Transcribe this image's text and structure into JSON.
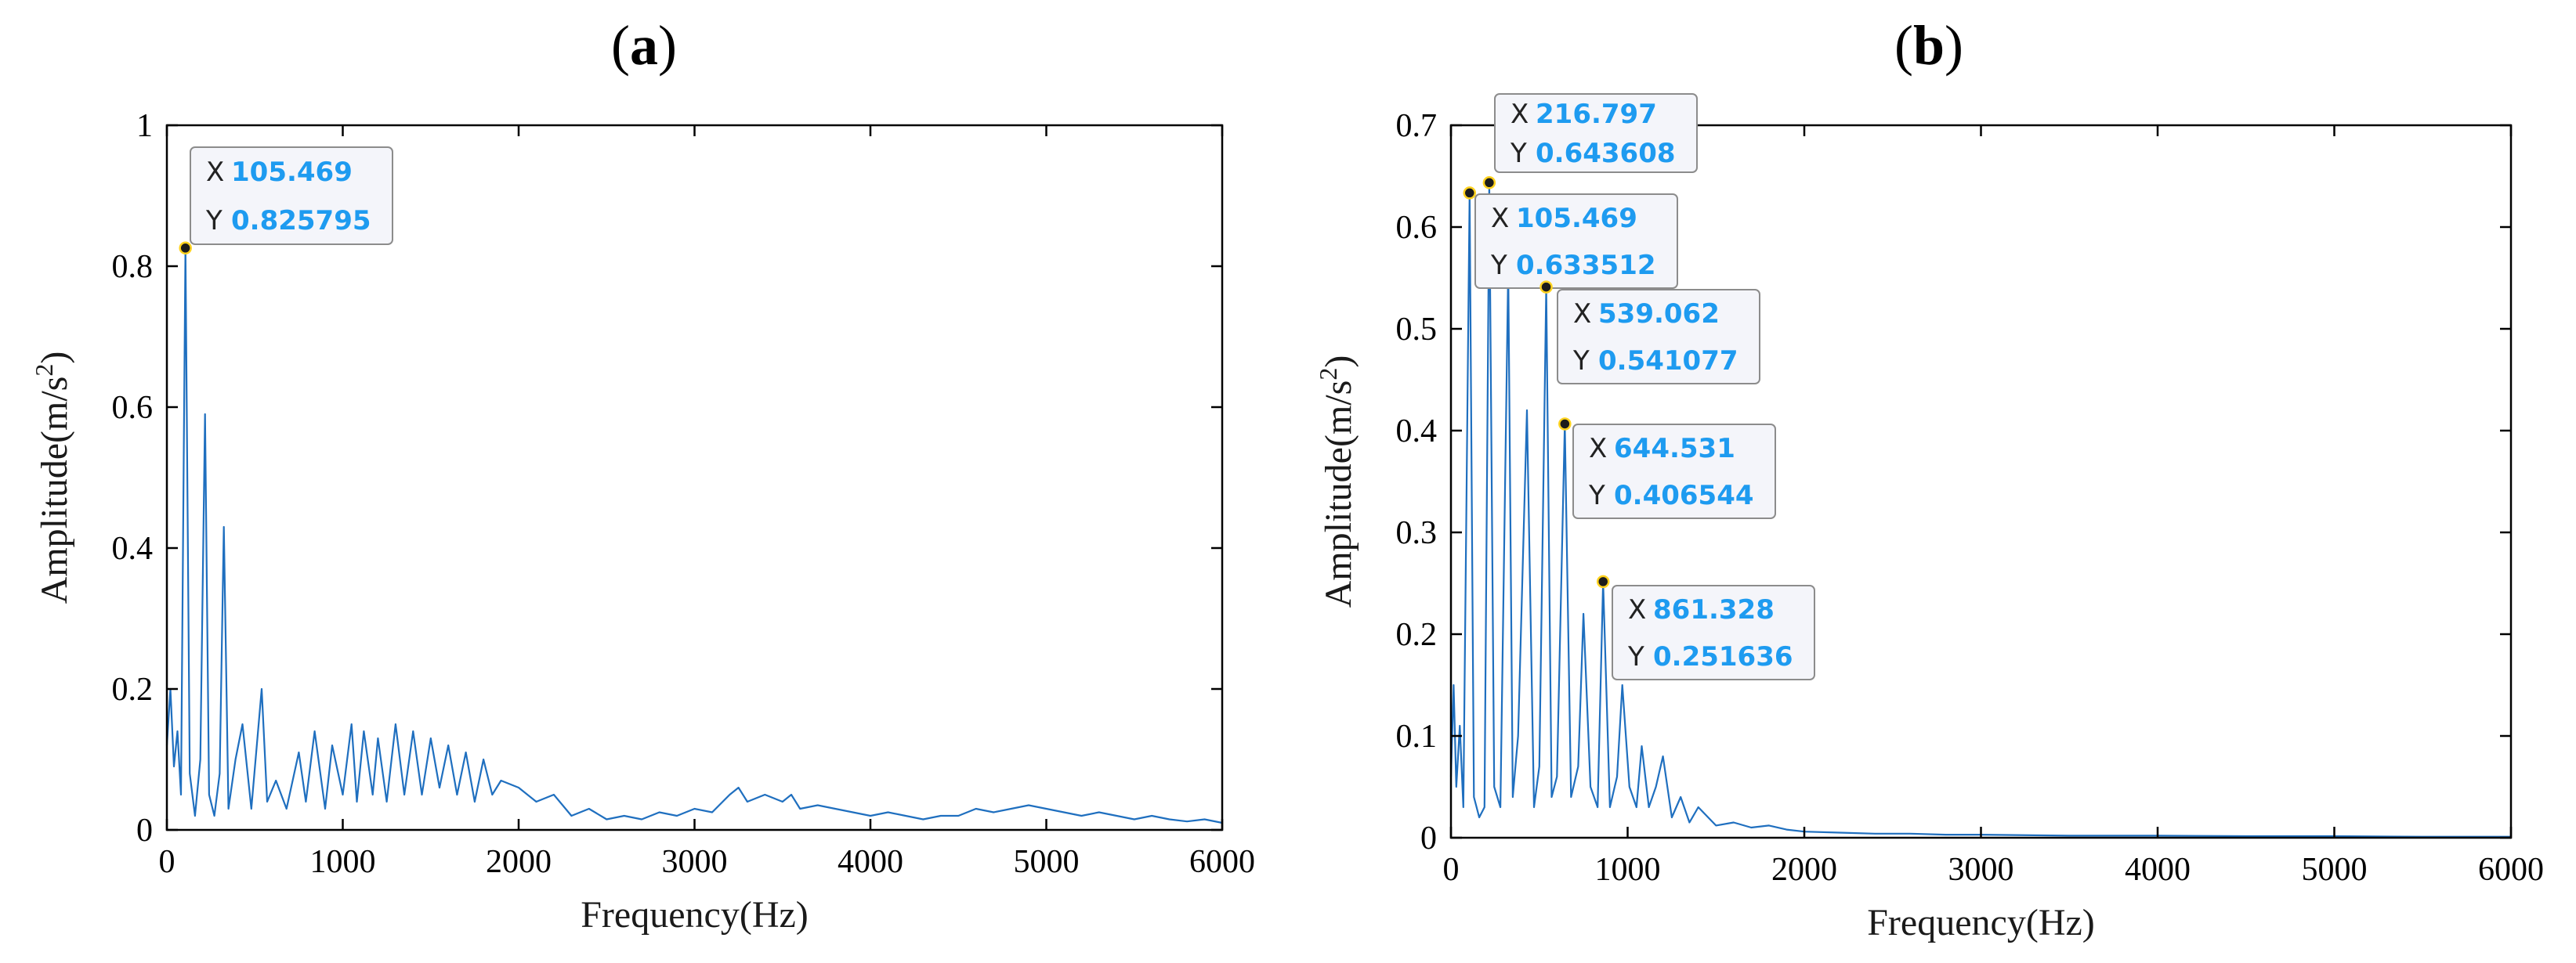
{
  "chart_data": [
    {
      "type": "line",
      "panel_label": "a",
      "title": "",
      "xlabel": "Frequency(Hz)",
      "ylabel_base": "Amplitude(m/s",
      "ylabel_sup": "2",
      "ylabel_close": ")",
      "xlim": [
        0,
        6000
      ],
      "ylim": [
        0,
        1
      ],
      "xticks": [
        0,
        1000,
        2000,
        3000,
        4000,
        5000,
        6000
      ],
      "yticks": [
        0,
        0.2,
        0.4,
        0.6,
        0.8,
        1
      ],
      "ytick_labels": [
        "0",
        "0.2",
        "0.4",
        "0.6",
        "0.8",
        "1"
      ],
      "grid": false,
      "series_color": "#1f6fbf",
      "series": [
        {
          "x": [
            0,
            20,
            40,
            60,
            80,
            105.469,
            130,
            160,
            190,
            216.797,
            240,
            270,
            300,
            324,
            350,
            390,
            430,
            480,
            539,
            570,
            620,
            680,
            750,
            790,
            840,
            900,
            940,
            1000,
            1050,
            1080,
            1120,
            1170,
            1200,
            1250,
            1300,
            1350,
            1400,
            1450,
            1500,
            1550,
            1600,
            1650,
            1700,
            1750,
            1800,
            1850,
            1900,
            2000,
            2100,
            2200,
            2300,
            2400,
            2500,
            2600,
            2700,
            2800,
            2900,
            3000,
            3100,
            3200,
            3250,
            3300,
            3400,
            3500,
            3550,
            3600,
            3700,
            3800,
            3900,
            4000,
            4100,
            4200,
            4300,
            4400,
            4500,
            4600,
            4700,
            4800,
            4900,
            5000,
            5100,
            5200,
            5300,
            5400,
            5500,
            5600,
            5700,
            5800,
            5900,
            6000
          ],
          "y": [
            0.12,
            0.2,
            0.09,
            0.14,
            0.05,
            0.825795,
            0.08,
            0.02,
            0.1,
            0.59,
            0.05,
            0.02,
            0.08,
            0.43,
            0.03,
            0.1,
            0.15,
            0.03,
            0.2,
            0.04,
            0.07,
            0.03,
            0.11,
            0.04,
            0.14,
            0.03,
            0.12,
            0.05,
            0.15,
            0.04,
            0.14,
            0.05,
            0.13,
            0.04,
            0.15,
            0.05,
            0.14,
            0.05,
            0.13,
            0.06,
            0.12,
            0.05,
            0.11,
            0.04,
            0.1,
            0.05,
            0.07,
            0.06,
            0.04,
            0.05,
            0.02,
            0.03,
            0.015,
            0.02,
            0.015,
            0.025,
            0.02,
            0.03,
            0.025,
            0.05,
            0.06,
            0.04,
            0.05,
            0.04,
            0.05,
            0.03,
            0.035,
            0.03,
            0.025,
            0.02,
            0.025,
            0.02,
            0.015,
            0.02,
            0.02,
            0.03,
            0.025,
            0.03,
            0.035,
            0.03,
            0.025,
            0.02,
            0.025,
            0.02,
            0.015,
            0.02,
            0.015,
            0.012,
            0.015,
            0.01
          ]
        }
      ],
      "datatips": [
        {
          "x": 105.469,
          "y": 0.825795,
          "x_text": "105.469",
          "y_text": "0.825795"
        }
      ]
    },
    {
      "type": "line",
      "panel_label": "b",
      "title": "",
      "xlabel": "Frequency(Hz)",
      "ylabel_base": "Amplitude(m/s",
      "ylabel_sup": "2",
      "ylabel_close": ")",
      "xlim": [
        0,
        6000
      ],
      "ylim": [
        0,
        0.7
      ],
      "xticks": [
        0,
        1000,
        2000,
        3000,
        4000,
        5000,
        6000
      ],
      "yticks": [
        0,
        0.1,
        0.2,
        0.3,
        0.4,
        0.5,
        0.6,
        0.7
      ],
      "ytick_labels": [
        "0",
        "0.1",
        "0.2",
        "0.3",
        "0.4",
        "0.5",
        "0.6",
        "0.7"
      ],
      "grid": false,
      "series_color": "#1f6fbf",
      "series": [
        {
          "x": [
            0,
            15,
            30,
            50,
            70,
            105.469,
            130,
            160,
            190,
            216.797,
            245,
            280,
            324,
            350,
            380,
            430,
            470,
            500,
            539.062,
            570,
            600,
            644.531,
            680,
            720,
            750,
            790,
            830,
            861.328,
            900,
            940,
            970,
            1010,
            1050,
            1080,
            1120,
            1160,
            1200,
            1250,
            1300,
            1350,
            1400,
            1500,
            1600,
            1700,
            1800,
            1900,
            2000,
            2200,
            2400,
            2600,
            2800,
            3000,
            3500,
            4000,
            4500,
            5000,
            5500,
            6000
          ],
          "y": [
            0.06,
            0.15,
            0.05,
            0.11,
            0.03,
            0.633512,
            0.04,
            0.02,
            0.03,
            0.643608,
            0.05,
            0.03,
            0.56,
            0.04,
            0.1,
            0.42,
            0.03,
            0.07,
            0.541077,
            0.04,
            0.06,
            0.406544,
            0.04,
            0.07,
            0.22,
            0.05,
            0.03,
            0.251636,
            0.03,
            0.06,
            0.15,
            0.05,
            0.03,
            0.09,
            0.03,
            0.05,
            0.08,
            0.02,
            0.04,
            0.015,
            0.03,
            0.012,
            0.015,
            0.01,
            0.012,
            0.008,
            0.006,
            0.005,
            0.004,
            0.004,
            0.003,
            0.003,
            0.002,
            0.002,
            0.0015,
            0.0015,
            0.001,
            0.001
          ]
        }
      ],
      "datatips": [
        {
          "x": 216.797,
          "y": 0.643608,
          "x_text": "216.797",
          "y_text": "0.643608"
        },
        {
          "x": 105.469,
          "y": 0.633512,
          "x_text": "105.469",
          "y_text": "0.633512"
        },
        {
          "x": 539.062,
          "y": 0.541077,
          "x_text": "539.062",
          "y_text": "0.541077"
        },
        {
          "x": 644.531,
          "y": 0.406544,
          "x_text": "644.531",
          "y_text": "0.406544"
        },
        {
          "x": 861.328,
          "y": 0.251636,
          "x_text": "861.328",
          "y_text": "0.251636"
        }
      ]
    }
  ],
  "datatip_keys": {
    "x": "X",
    "y": "Y"
  }
}
